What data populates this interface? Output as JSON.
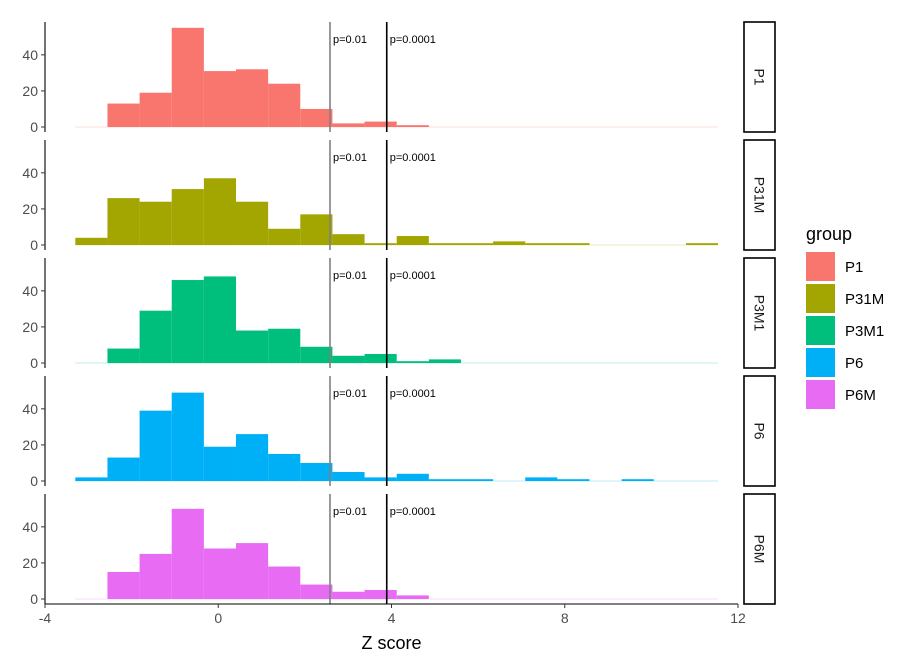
{
  "chart_data": {
    "type": "histogram-facet",
    "xlabel": "Z score",
    "ylabel": "",
    "xlim": [
      -4,
      12
    ],
    "x_ticks": [
      -4,
      0,
      4,
      8,
      12
    ],
    "ylim": [
      0,
      56
    ],
    "y_ticks": [
      0,
      20,
      40
    ],
    "bin_start": -3.3,
    "bin_width": 0.742,
    "thresholds": [
      {
        "label": "p=0.01",
        "x": 2.58,
        "color": "#808080"
      },
      {
        "label": "p=0.0001",
        "x": 3.89,
        "color": "#000000"
      }
    ],
    "legend": {
      "title": "group",
      "items": [
        {
          "name": "P1",
          "color": "#F8766D"
        },
        {
          "name": "P31M",
          "color": "#A3A500"
        },
        {
          "name": "P3M1",
          "color": "#00BF7D"
        },
        {
          "name": "P6",
          "color": "#00B0F6"
        },
        {
          "name": "P6M",
          "color": "#E76BF3"
        }
      ]
    },
    "panels": [
      {
        "group": "P1",
        "color": "#F8766D",
        "counts": [
          0,
          13,
          19,
          55,
          31,
          32,
          24,
          10,
          2,
          3,
          1,
          0,
          0,
          0,
          0,
          0,
          0,
          0,
          0,
          0
        ]
      },
      {
        "group": "P31M",
        "color": "#A3A500",
        "counts": [
          4,
          26,
          24,
          31,
          37,
          24,
          9,
          17,
          6,
          1,
          5,
          1,
          1,
          2,
          1,
          1,
          0,
          0,
          0,
          1
        ]
      },
      {
        "group": "P3M1",
        "color": "#00BF7D",
        "counts": [
          0,
          8,
          29,
          46,
          48,
          18,
          19,
          9,
          4,
          5,
          1,
          2,
          0,
          0,
          0,
          0,
          0,
          0,
          0,
          0
        ]
      },
      {
        "group": "P6",
        "color": "#00B0F6",
        "counts": [
          2,
          13,
          39,
          49,
          19,
          26,
          15,
          10,
          5,
          2,
          4,
          1,
          1,
          0,
          2,
          1,
          0,
          1,
          0,
          0
        ]
      },
      {
        "group": "P6M",
        "color": "#E76BF3",
        "counts": [
          0,
          15,
          25,
          50,
          28,
          31,
          18,
          8,
          4,
          5,
          2,
          0,
          0,
          0,
          0,
          0,
          0,
          0,
          0,
          0
        ]
      }
    ]
  }
}
